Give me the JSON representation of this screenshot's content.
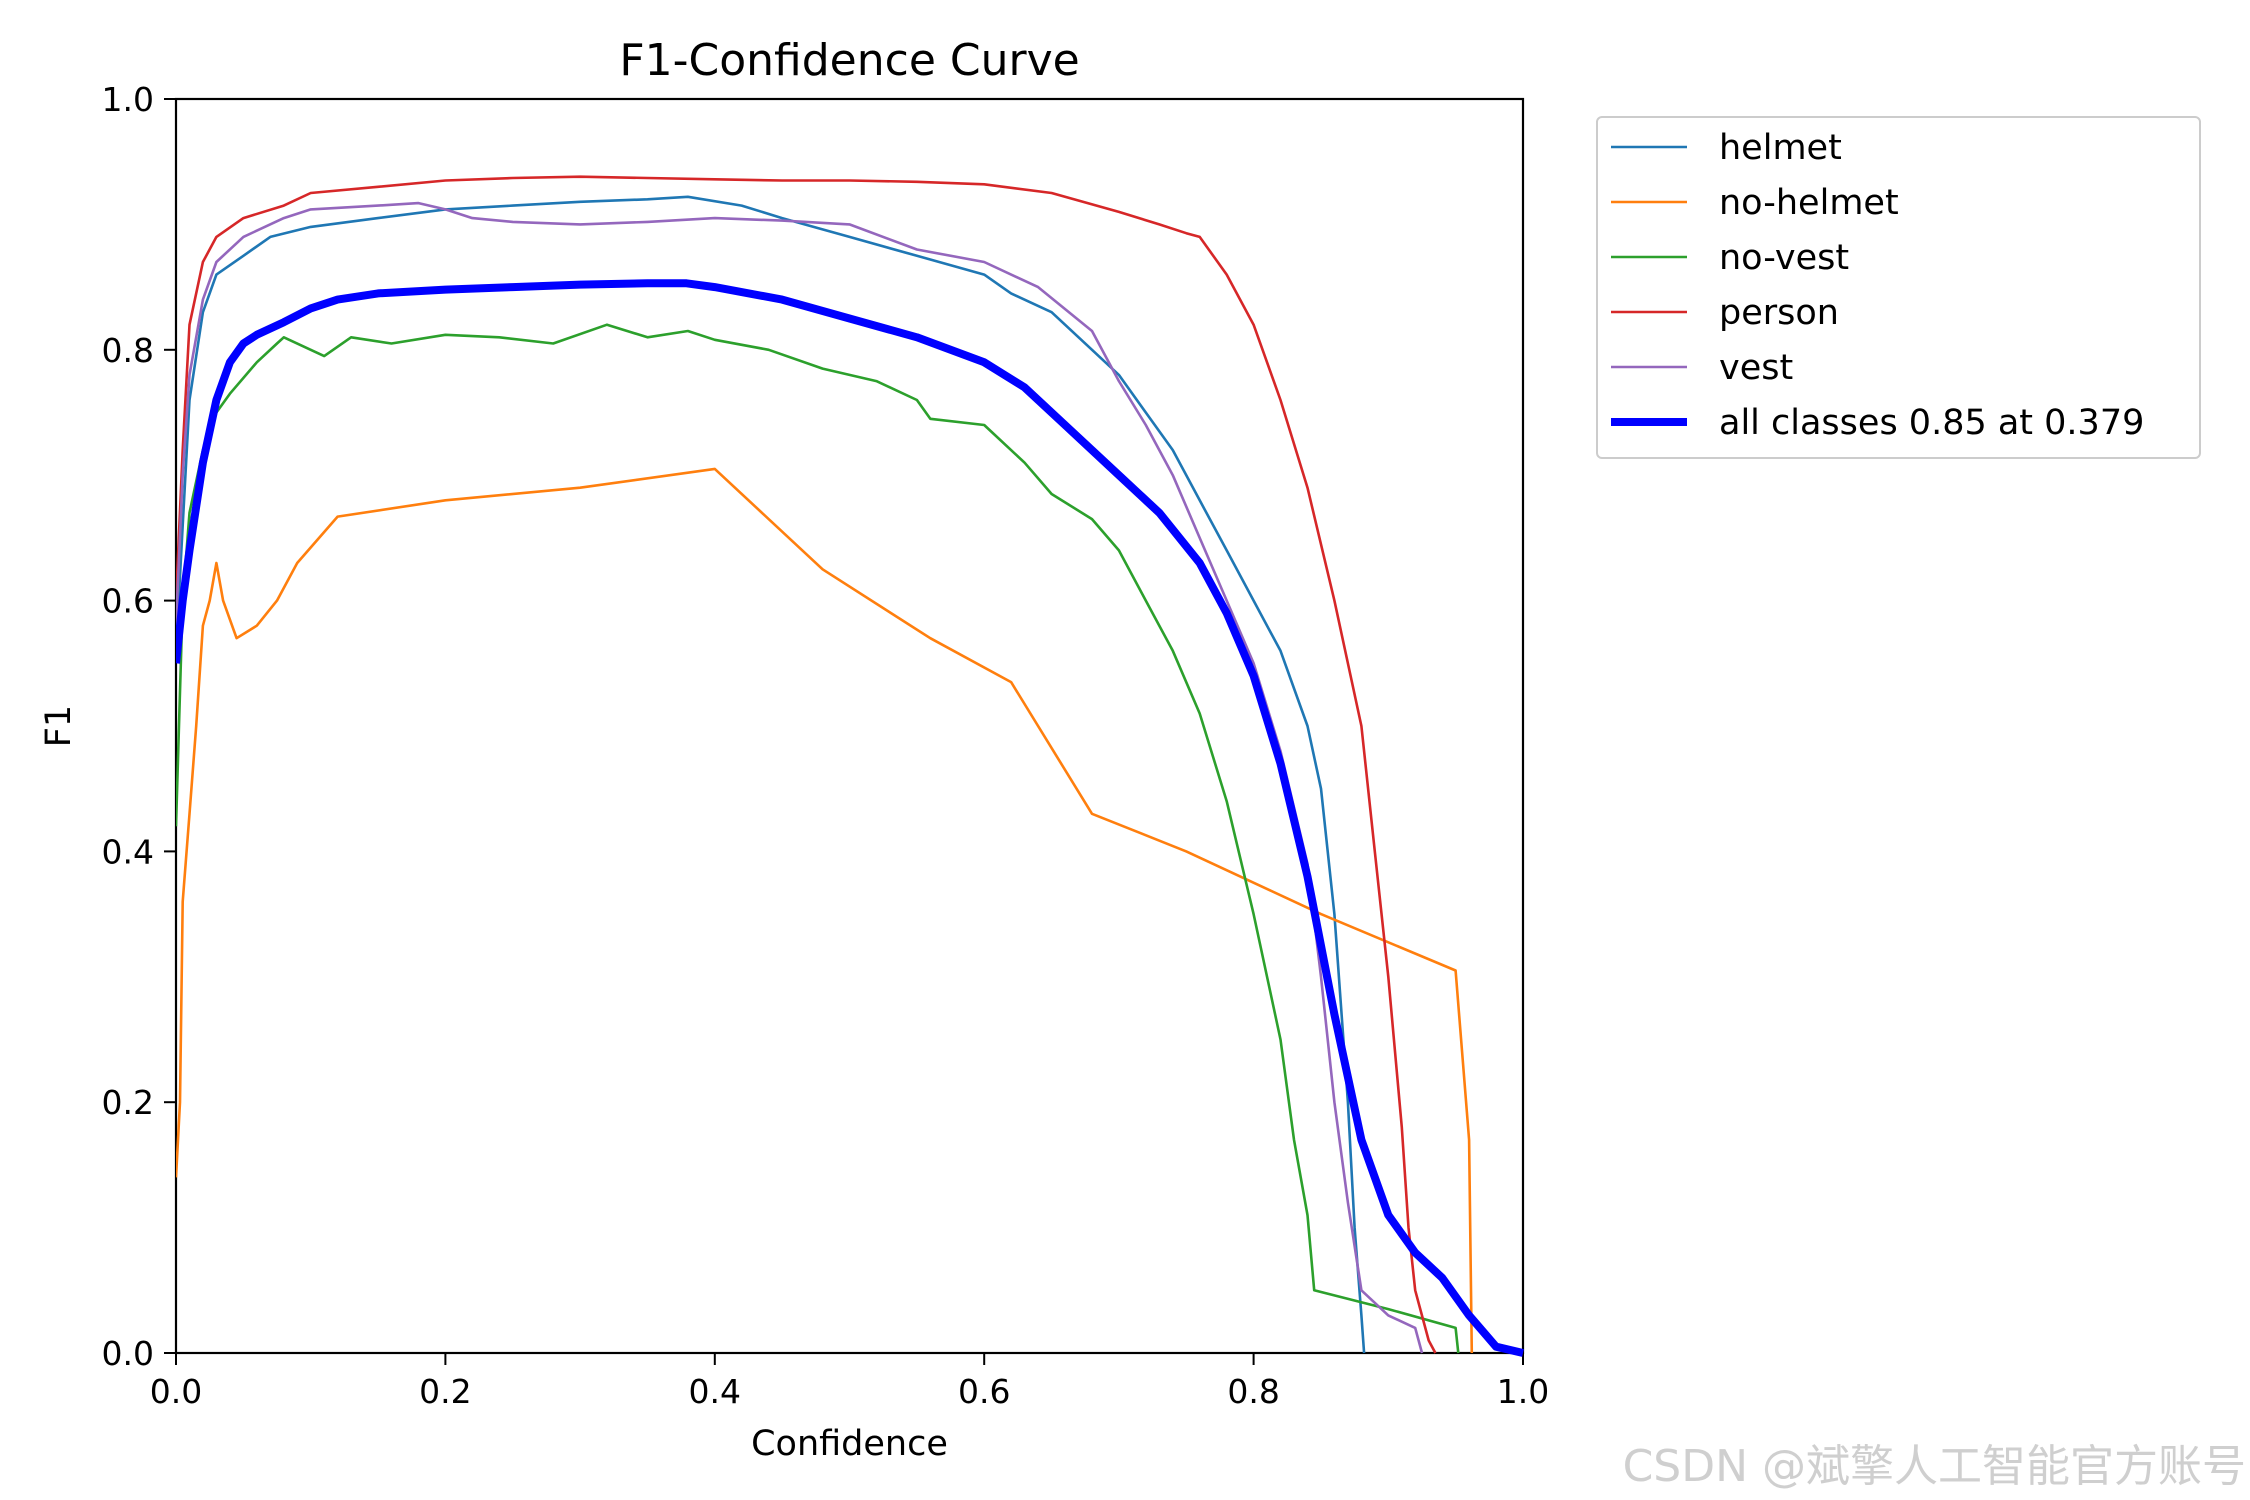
{
  "watermark": "CSDN @斌擎人工智能官方账号",
  "chart_data": {
    "type": "line",
    "title": "F1-Confidence Curve",
    "xlabel": "Confidence",
    "ylabel": "F1",
    "xlim": [
      0,
      1
    ],
    "ylim": [
      0,
      1
    ],
    "xticks": [
      "0.0",
      "0.2",
      "0.4",
      "0.6",
      "0.8",
      "1.0"
    ],
    "yticks": [
      "0.0",
      "0.2",
      "0.4",
      "0.6",
      "0.8",
      "1.0"
    ],
    "grid": false,
    "legend_position": "outside-top-right",
    "series": [
      {
        "name": "helmet",
        "color": "#1f77b4",
        "points": [
          [
            0,
            0.56
          ],
          [
            0.005,
            0.66
          ],
          [
            0.01,
            0.76
          ],
          [
            0.02,
            0.83
          ],
          [
            0.03,
            0.86
          ],
          [
            0.05,
            0.875
          ],
          [
            0.07,
            0.89
          ],
          [
            0.1,
            0.898
          ],
          [
            0.15,
            0.905
          ],
          [
            0.2,
            0.912
          ],
          [
            0.25,
            0.915
          ],
          [
            0.3,
            0.918
          ],
          [
            0.35,
            0.92
          ],
          [
            0.38,
            0.922
          ],
          [
            0.42,
            0.915
          ],
          [
            0.45,
            0.905
          ],
          [
            0.5,
            0.89
          ],
          [
            0.55,
            0.875
          ],
          [
            0.6,
            0.86
          ],
          [
            0.62,
            0.845
          ],
          [
            0.65,
            0.83
          ],
          [
            0.68,
            0.8
          ],
          [
            0.7,
            0.78
          ],
          [
            0.72,
            0.75
          ],
          [
            0.74,
            0.72
          ],
          [
            0.76,
            0.68
          ],
          [
            0.78,
            0.64
          ],
          [
            0.8,
            0.6
          ],
          [
            0.82,
            0.56
          ],
          [
            0.84,
            0.5
          ],
          [
            0.85,
            0.45
          ],
          [
            0.86,
            0.35
          ],
          [
            0.87,
            0.2
          ],
          [
            0.875,
            0.1
          ],
          [
            0.88,
            0.03
          ],
          [
            0.882,
            0
          ]
        ]
      },
      {
        "name": "no-helmet",
        "color": "#ff7f0e",
        "points": [
          [
            0,
            0.14
          ],
          [
            0.003,
            0.2
          ],
          [
            0.005,
            0.36
          ],
          [
            0.01,
            0.43
          ],
          [
            0.015,
            0.5
          ],
          [
            0.02,
            0.58
          ],
          [
            0.025,
            0.6
          ],
          [
            0.03,
            0.63
          ],
          [
            0.035,
            0.6
          ],
          [
            0.045,
            0.57
          ],
          [
            0.06,
            0.58
          ],
          [
            0.075,
            0.6
          ],
          [
            0.09,
            0.63
          ],
          [
            0.12,
            0.667
          ],
          [
            0.2,
            0.68
          ],
          [
            0.3,
            0.69
          ],
          [
            0.4,
            0.705
          ],
          [
            0.48,
            0.625
          ],
          [
            0.56,
            0.57
          ],
          [
            0.62,
            0.535
          ],
          [
            0.68,
            0.43
          ],
          [
            0.75,
            0.4
          ],
          [
            0.85,
            0.35
          ],
          [
            0.95,
            0.305
          ],
          [
            0.96,
            0.17
          ],
          [
            0.962,
            0
          ]
        ]
      },
      {
        "name": "no-vest",
        "color": "#2ca02c",
        "points": [
          [
            0,
            0.42
          ],
          [
            0.005,
            0.6
          ],
          [
            0.01,
            0.67
          ],
          [
            0.02,
            0.72
          ],
          [
            0.03,
            0.75
          ],
          [
            0.04,
            0.765
          ],
          [
            0.06,
            0.79
          ],
          [
            0.075,
            0.805
          ],
          [
            0.08,
            0.81
          ],
          [
            0.1,
            0.8
          ],
          [
            0.11,
            0.795
          ],
          [
            0.13,
            0.81
          ],
          [
            0.16,
            0.805
          ],
          [
            0.2,
            0.812
          ],
          [
            0.24,
            0.81
          ],
          [
            0.28,
            0.805
          ],
          [
            0.32,
            0.82
          ],
          [
            0.35,
            0.81
          ],
          [
            0.38,
            0.815
          ],
          [
            0.4,
            0.808
          ],
          [
            0.44,
            0.8
          ],
          [
            0.48,
            0.785
          ],
          [
            0.52,
            0.775
          ],
          [
            0.55,
            0.76
          ],
          [
            0.56,
            0.745
          ],
          [
            0.6,
            0.74
          ],
          [
            0.63,
            0.71
          ],
          [
            0.65,
            0.685
          ],
          [
            0.68,
            0.665
          ],
          [
            0.7,
            0.64
          ],
          [
            0.72,
            0.6
          ],
          [
            0.74,
            0.56
          ],
          [
            0.76,
            0.51
          ],
          [
            0.78,
            0.44
          ],
          [
            0.8,
            0.35
          ],
          [
            0.82,
            0.25
          ],
          [
            0.83,
            0.17
          ],
          [
            0.84,
            0.11
          ],
          [
            0.845,
            0.05
          ],
          [
            0.9,
            0.035
          ],
          [
            0.95,
            0.02
          ],
          [
            0.952,
            0
          ]
        ]
      },
      {
        "name": "person",
        "color": "#d62728",
        "points": [
          [
            0,
            0.6
          ],
          [
            0.005,
            0.72
          ],
          [
            0.01,
            0.82
          ],
          [
            0.02,
            0.87
          ],
          [
            0.03,
            0.89
          ],
          [
            0.05,
            0.905
          ],
          [
            0.08,
            0.915
          ],
          [
            0.1,
            0.925
          ],
          [
            0.15,
            0.93
          ],
          [
            0.2,
            0.935
          ],
          [
            0.25,
            0.937
          ],
          [
            0.3,
            0.938
          ],
          [
            0.35,
            0.937
          ],
          [
            0.4,
            0.936
          ],
          [
            0.45,
            0.935
          ],
          [
            0.5,
            0.935
          ],
          [
            0.55,
            0.934
          ],
          [
            0.6,
            0.932
          ],
          [
            0.65,
            0.925
          ],
          [
            0.7,
            0.91
          ],
          [
            0.73,
            0.9
          ],
          [
            0.75,
            0.893
          ],
          [
            0.76,
            0.89
          ],
          [
            0.78,
            0.86
          ],
          [
            0.8,
            0.82
          ],
          [
            0.82,
            0.76
          ],
          [
            0.84,
            0.69
          ],
          [
            0.86,
            0.6
          ],
          [
            0.88,
            0.5
          ],
          [
            0.89,
            0.4
          ],
          [
            0.9,
            0.3
          ],
          [
            0.91,
            0.18
          ],
          [
            0.915,
            0.1
          ],
          [
            0.92,
            0.05
          ],
          [
            0.93,
            0.01
          ],
          [
            0.935,
            0
          ]
        ]
      },
      {
        "name": "vest",
        "color": "#9467bd",
        "points": [
          [
            0,
            0.58
          ],
          [
            0.005,
            0.7
          ],
          [
            0.01,
            0.78
          ],
          [
            0.02,
            0.84
          ],
          [
            0.03,
            0.87
          ],
          [
            0.05,
            0.89
          ],
          [
            0.08,
            0.905
          ],
          [
            0.1,
            0.912
          ],
          [
            0.15,
            0.915
          ],
          [
            0.18,
            0.917
          ],
          [
            0.2,
            0.912
          ],
          [
            0.22,
            0.905
          ],
          [
            0.25,
            0.902
          ],
          [
            0.3,
            0.9
          ],
          [
            0.35,
            0.902
          ],
          [
            0.4,
            0.905
          ],
          [
            0.45,
            0.903
          ],
          [
            0.5,
            0.9
          ],
          [
            0.55,
            0.88
          ],
          [
            0.6,
            0.87
          ],
          [
            0.64,
            0.85
          ],
          [
            0.68,
            0.815
          ],
          [
            0.7,
            0.775
          ],
          [
            0.72,
            0.74
          ],
          [
            0.74,
            0.7
          ],
          [
            0.76,
            0.65
          ],
          [
            0.78,
            0.6
          ],
          [
            0.8,
            0.55
          ],
          [
            0.82,
            0.48
          ],
          [
            0.84,
            0.39
          ],
          [
            0.85,
            0.3
          ],
          [
            0.86,
            0.2
          ],
          [
            0.87,
            0.12
          ],
          [
            0.88,
            0.05
          ],
          [
            0.9,
            0.03
          ],
          [
            0.92,
            0.02
          ],
          [
            0.925,
            0
          ]
        ]
      },
      {
        "name": "all classes 0.85 at 0.379",
        "color": "#0000ff",
        "points": [
          [
            0,
            0.55
          ],
          [
            0.005,
            0.6
          ],
          [
            0.01,
            0.64
          ],
          [
            0.02,
            0.71
          ],
          [
            0.03,
            0.76
          ],
          [
            0.04,
            0.79
          ],
          [
            0.05,
            0.805
          ],
          [
            0.06,
            0.812
          ],
          [
            0.08,
            0.822
          ],
          [
            0.1,
            0.833
          ],
          [
            0.12,
            0.84
          ],
          [
            0.15,
            0.845
          ],
          [
            0.2,
            0.848
          ],
          [
            0.25,
            0.85
          ],
          [
            0.3,
            0.852
          ],
          [
            0.35,
            0.853
          ],
          [
            0.379,
            0.853
          ],
          [
            0.4,
            0.85
          ],
          [
            0.45,
            0.84
          ],
          [
            0.5,
            0.825
          ],
          [
            0.55,
            0.81
          ],
          [
            0.6,
            0.79
          ],
          [
            0.63,
            0.77
          ],
          [
            0.66,
            0.74
          ],
          [
            0.7,
            0.7
          ],
          [
            0.73,
            0.67
          ],
          [
            0.76,
            0.63
          ],
          [
            0.78,
            0.59
          ],
          [
            0.8,
            0.54
          ],
          [
            0.82,
            0.47
          ],
          [
            0.84,
            0.38
          ],
          [
            0.86,
            0.27
          ],
          [
            0.88,
            0.17
          ],
          [
            0.9,
            0.11
          ],
          [
            0.92,
            0.08
          ],
          [
            0.94,
            0.06
          ],
          [
            0.96,
            0.03
          ],
          [
            0.98,
            0.005
          ],
          [
            1.0,
            0
          ]
        ]
      }
    ]
  }
}
